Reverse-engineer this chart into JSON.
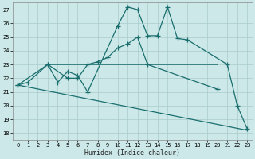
{
  "xlabel": "Humidex (Indice chaleur)",
  "bg_color": "#cce8e8",
  "grid_color": "#aacccc",
  "line_color": "#1a6e6e",
  "ylim": [
    17.5,
    27.5
  ],
  "yticks": [
    18,
    19,
    20,
    21,
    22,
    23,
    24,
    25,
    26,
    27
  ],
  "xticks": [
    0,
    1,
    2,
    3,
    4,
    5,
    6,
    7,
    8,
    9,
    10,
    11,
    12,
    13,
    14,
    15,
    16,
    17,
    18,
    19,
    20,
    21,
    22,
    23
  ],
  "xlim": [
    -0.5,
    23.5
  ],
  "line1_x": [
    0,
    1,
    3,
    4,
    5,
    6,
    7,
    10,
    11,
    12,
    13,
    14,
    15,
    16,
    17,
    21,
    22,
    23
  ],
  "line1_y": [
    21.5,
    21.7,
    23.0,
    21.7,
    22.5,
    22.2,
    21.0,
    25.8,
    27.2,
    27.0,
    25.1,
    25.1,
    27.2,
    24.9,
    24.8,
    23.0,
    20.0,
    18.3
  ],
  "line2_x": [
    0,
    3,
    5,
    6,
    7,
    8,
    9,
    10,
    11,
    12,
    13,
    20
  ],
  "line2_y": [
    21.5,
    23.0,
    22.0,
    22.0,
    23.0,
    23.2,
    23.5,
    24.2,
    24.5,
    25.0,
    23.0,
    21.2
  ],
  "line3_x": [
    0,
    23
  ],
  "line3_y": [
    21.5,
    18.2
  ],
  "hline_x": [
    3,
    20
  ],
  "hline_y": [
    23.0,
    23.0
  ]
}
